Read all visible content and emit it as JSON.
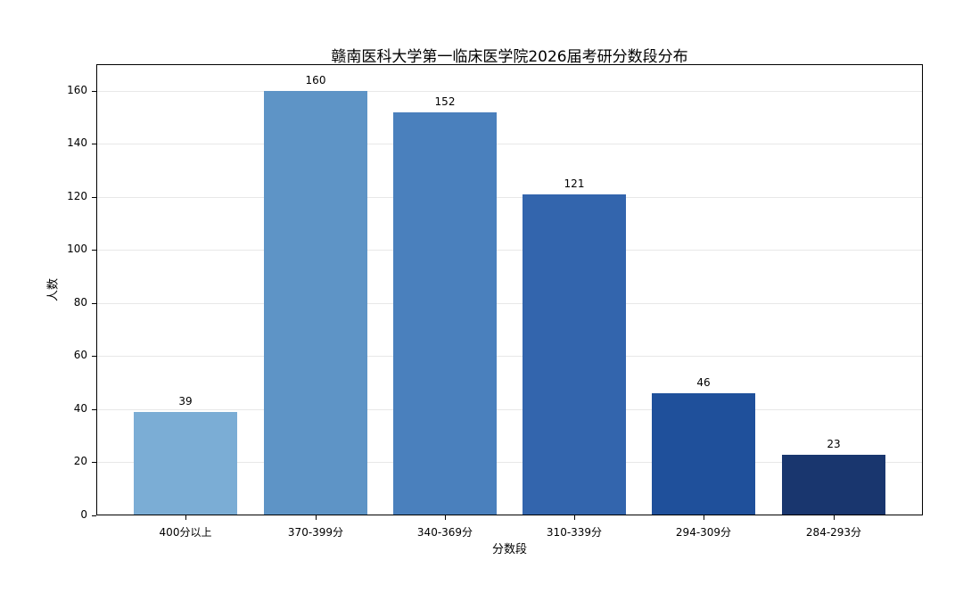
{
  "chart_data": {
    "type": "bar",
    "title": "赣南医科大学第一临床医学院2026届考研分数段分布",
    "xlabel": "分数段",
    "ylabel": "人数",
    "categories": [
      "400分以上",
      "370-399分",
      "340-369分",
      "310-339分",
      "294-309分",
      "284-293分"
    ],
    "values": [
      39,
      160,
      152,
      121,
      46,
      23
    ],
    "bar_colors": [
      "#7badd5",
      "#5e94c6",
      "#4a80bd",
      "#3365ad",
      "#1f509b",
      "#19366e"
    ],
    "yticks": [
      0,
      20,
      40,
      60,
      80,
      100,
      120,
      140,
      160
    ],
    "ylim": [
      0,
      170
    ],
    "grid": "horizontal",
    "gridline_color": "#e8e8e8",
    "legend": "none",
    "frame": "box"
  }
}
